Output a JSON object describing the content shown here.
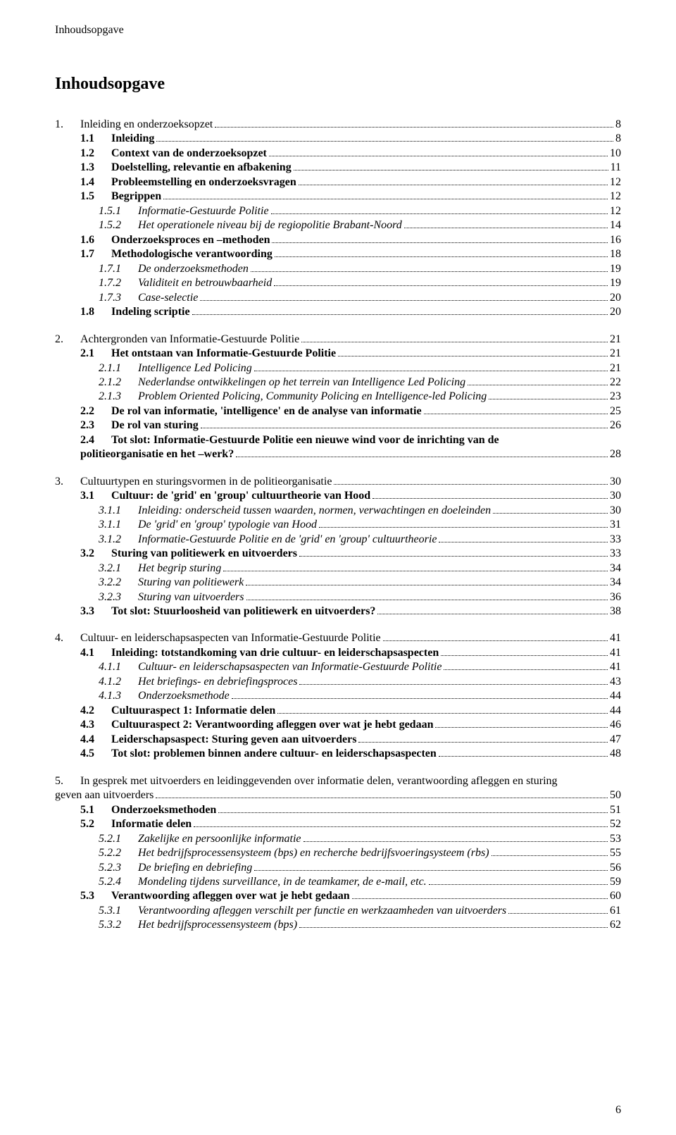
{
  "running_head": "Inhoudsopgave",
  "title": "Inhoudsopgave",
  "page_number": "6",
  "chapters": [
    {
      "num": "1.",
      "label": "Inleiding en onderzoeksopzet",
      "page": "8",
      "sections": [
        {
          "num": "1.1",
          "label": "Inleiding",
          "page": "8",
          "style": "bold"
        },
        {
          "num": "1.2",
          "label": "Context van de onderzoeksopzet",
          "page": "10",
          "style": "bold"
        },
        {
          "num": "1.3",
          "label": "Doelstelling, relevantie en afbakening",
          "page": "11",
          "style": "bold"
        },
        {
          "num": "1.4",
          "label": "Probleemstelling en onderzoeksvragen",
          "page": "12",
          "style": "bold"
        },
        {
          "num": "1.5",
          "label": "Begrippen",
          "page": "12",
          "style": "bold"
        },
        {
          "num": "1.5.1",
          "label": "Informatie-Gestuurde Politie",
          "page": "12",
          "style": "italic",
          "level": "sub"
        },
        {
          "num": "1.5.2",
          "label": "Het operationele niveau bij de regiopolitie Brabant-Noord",
          "page": "14",
          "style": "italic",
          "level": "sub"
        },
        {
          "num": "1.6",
          "label": "Onderzoeksproces en –methoden",
          "page": "16",
          "style": "bold"
        },
        {
          "num": "1.7",
          "label": "Methodologische verantwoording",
          "page": "18",
          "style": "bold"
        },
        {
          "num": "1.7.1",
          "label": "De onderzoeksmethoden",
          "page": "19",
          "style": "italic",
          "level": "sub"
        },
        {
          "num": "1.7.2",
          "label": "Validiteit en betrouwbaarheid",
          "page": "19",
          "style": "italic",
          "level": "sub"
        },
        {
          "num": "1.7.3",
          "label": "Case-selectie",
          "page": "20",
          "style": "italic",
          "level": "sub"
        },
        {
          "num": "1.8",
          "label": "Indeling scriptie",
          "page": "20",
          "style": "bold"
        }
      ]
    },
    {
      "num": "2.",
      "label": "Achtergronden van Informatie-Gestuurde Politie",
      "page": "21",
      "sections": [
        {
          "num": "2.1",
          "label": "Het ontstaan van Informatie-Gestuurde Politie",
          "page": "21",
          "style": "bold"
        },
        {
          "num": "2.1.1",
          "label": "Intelligence Led Policing",
          "page": "21",
          "style": "italic",
          "level": "sub"
        },
        {
          "num": "2.1.2",
          "label": "Nederlandse ontwikkelingen op het terrein van Intelligence Led Policing",
          "page": "22",
          "style": "italic",
          "level": "sub"
        },
        {
          "num": "2.1.3",
          "label": "Problem Oriented Policing, Community Policing en Intelligence-led Policing",
          "page": "23",
          "style": "italic",
          "level": "sub"
        },
        {
          "num": "2.2",
          "label": "De rol van informatie, 'intelligence' en de analyse van informatie",
          "page": "25",
          "style": "bold"
        },
        {
          "num": "2.3",
          "label": "De rol van sturing",
          "page": "26",
          "style": "bold"
        },
        {
          "num": "2.4",
          "label": "Tot slot: Informatie-Gestuurde Politie een nieuwe wind voor de inrichting van de",
          "style": "bold",
          "nowrap_continue": true
        },
        {
          "continuation": true,
          "label": "politieorganisatie en het –werk?",
          "page": "28",
          "style": "bold"
        }
      ]
    },
    {
      "num": "3.",
      "label": "Cultuurtypen en sturingsvormen in de politieorganisatie",
      "page": "30",
      "sections": [
        {
          "num": "3.1",
          "label": "Cultuur: de 'grid' en 'group' cultuurtheorie van Hood",
          "page": "30",
          "style": "bold"
        },
        {
          "num": "3.1.1",
          "label": "Inleiding: onderscheid tussen waarden, normen, verwachtingen en doeleinden",
          "page": "30",
          "style": "italic",
          "level": "sub"
        },
        {
          "num": "3.1.1",
          "label": "De 'grid' en 'group' typologie van Hood",
          "page": "31",
          "style": "italic",
          "level": "sub"
        },
        {
          "num": "3.1.2",
          "label": "Informatie-Gestuurde Politie en de 'grid' en 'group' cultuurtheorie",
          "page": "33",
          "style": "italic",
          "level": "sub"
        },
        {
          "num": "3.2",
          "label": "Sturing van politiewerk en uitvoerders",
          "page": "33",
          "style": "bold"
        },
        {
          "num": "3.2.1",
          "label": "Het begrip sturing",
          "page": "34",
          "style": "italic",
          "level": "sub"
        },
        {
          "num": "3.2.2",
          "label": "Sturing van politiewerk",
          "page": "34",
          "style": "italic",
          "level": "sub"
        },
        {
          "num": "3.2.3",
          "label": "Sturing van uitvoerders",
          "page": "36",
          "style": "italic",
          "level": "sub"
        },
        {
          "num": "3.3",
          "label": "Tot slot: Stuurloosheid van politiewerk en uitvoerders?",
          "page": "38",
          "style": "bold"
        }
      ]
    },
    {
      "num": "4.",
      "label": "Cultuur- en leiderschapsaspecten van Informatie-Gestuurde Politie",
      "page": "41",
      "sections": [
        {
          "num": "4.1",
          "label": "Inleiding: totstandkoming van drie cultuur- en leiderschapsaspecten",
          "page": "41",
          "style": "bold"
        },
        {
          "num": "4.1.1",
          "label": "Cultuur- en leiderschapsaspecten van Informatie-Gestuurde Politie",
          "page": "41",
          "style": "italic",
          "level": "sub"
        },
        {
          "num": "4.1.2",
          "label": "Het briefings- en debriefingsproces",
          "page": "43",
          "style": "italic",
          "level": "sub"
        },
        {
          "num": "4.1.3",
          "label": "Onderzoeksmethode",
          "page": "44",
          "style": "italic",
          "level": "sub"
        },
        {
          "num": "4.2",
          "label": "Cultuuraspect 1: Informatie delen",
          "page": "44",
          "style": "bold"
        },
        {
          "num": "4.3",
          "label": "Cultuuraspect 2: Verantwoording afleggen over wat je hebt gedaan",
          "page": "46",
          "style": "bold"
        },
        {
          "num": "4.4",
          "label": "Leiderschapsaspect: Sturing geven aan uitvoerders",
          "page": "47",
          "style": "bold"
        },
        {
          "num": "4.5",
          "label": "Tot slot: problemen binnen andere cultuur- en leiderschapsaspecten",
          "page": "48",
          "style": "bold"
        }
      ]
    },
    {
      "num": "5.",
      "label": "In gesprek met uitvoerders en leidinggevenden over informatie delen, verantwoording afleggen en sturing",
      "nowrap_continue": true,
      "continuation_label": "geven aan uitvoerders",
      "page": "50",
      "sections": [
        {
          "num": "5.1",
          "label": "Onderzoeksmethoden",
          "page": "51",
          "style": "bold"
        },
        {
          "num": "5.2",
          "label": "Informatie delen",
          "page": "52",
          "style": "bold"
        },
        {
          "num": "5.2.1",
          "label": "Zakelijke en persoonlijke informatie",
          "page": "53",
          "style": "italic",
          "level": "sub"
        },
        {
          "num": "5.2.2",
          "label": "Het bedrijfsprocessensysteem (bps) en recherche bedrijfsvoeringsysteem (rbs)",
          "page": "55",
          "style": "italic",
          "level": "sub"
        },
        {
          "num": "5.2.3",
          "label": "De briefing en debriefing",
          "page": "56",
          "style": "italic",
          "level": "sub"
        },
        {
          "num": "5.2.4",
          "label": "Mondeling tijdens surveillance, in de teamkamer, de e-mail, etc.",
          "page": "59",
          "style": "italic",
          "level": "sub"
        },
        {
          "num": "5.3",
          "label": "Verantwoording afleggen over wat je hebt gedaan",
          "page": "60",
          "style": "bold"
        },
        {
          "num": "5.3.1",
          "label": "Verantwoording afleggen verschilt per functie en werkzaamheden van uitvoerders",
          "page": "61",
          "style": "italic",
          "level": "sub"
        },
        {
          "num": "5.3.2",
          "label": "Het bedrijfsprocessensysteem (bps)",
          "page": "62",
          "style": "italic",
          "level": "sub"
        }
      ]
    }
  ]
}
